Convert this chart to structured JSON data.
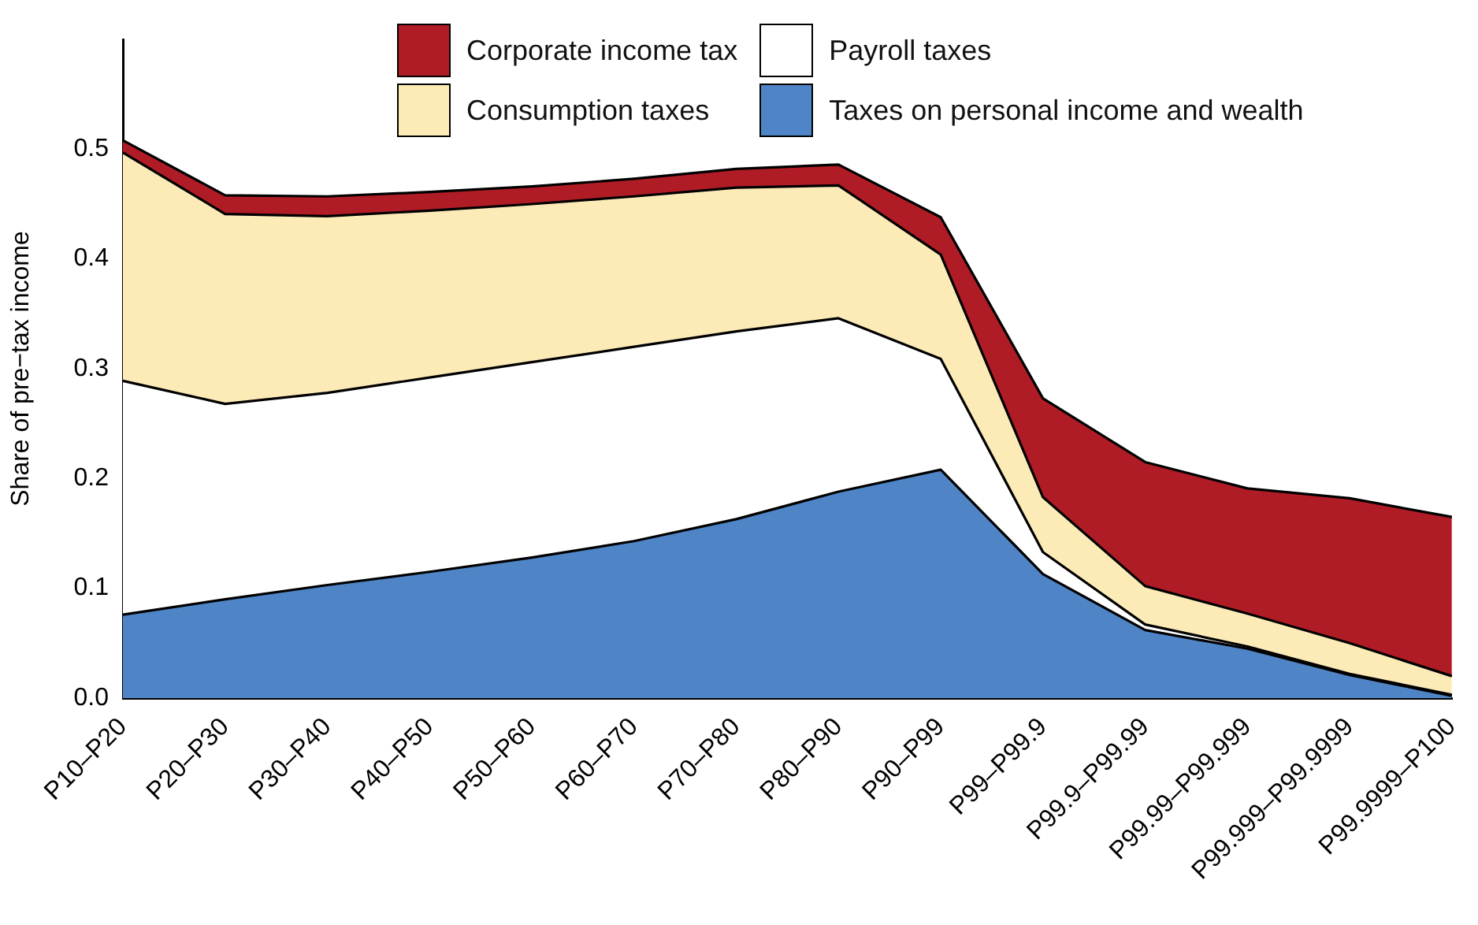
{
  "chart_data": {
    "type": "area",
    "stacked": true,
    "ylabel": "Share of pre−tax income",
    "categories": [
      "P10–P20",
      "P20–P30",
      "P30–P40",
      "P40–P50",
      "P50–P60",
      "P60–P70",
      "P70–P80",
      "P80–P90",
      "P90–P99",
      "P99–P99.9",
      "P99.9–P99.99",
      "P99.99–P99.999",
      "P99.999–P99.9999",
      "P99.9999–P100"
    ],
    "series": [
      {
        "name": "Taxes on personal income and wealth",
        "color": "#4f85c6",
        "values": [
          0.076,
          0.09,
          0.103,
          0.115,
          0.128,
          0.143,
          0.163,
          0.188,
          0.208,
          0.113,
          0.062,
          0.045,
          0.021,
          0.002
        ]
      },
      {
        "name": "Payroll taxes",
        "color": "#ffffff",
        "values": [
          0.213,
          0.178,
          0.175,
          0.177,
          0.178,
          0.177,
          0.171,
          0.158,
          0.101,
          0.02,
          0.005,
          0.002,
          0.001,
          0.001
        ]
      },
      {
        "name": "Consumption taxes",
        "color": "#fdebb7",
        "values": [
          0.208,
          0.173,
          0.161,
          0.152,
          0.144,
          0.137,
          0.131,
          0.121,
          0.095,
          0.05,
          0.035,
          0.03,
          0.028,
          0.017
        ]
      },
      {
        "name": "Corporate income tax",
        "color": "#b01c26",
        "values": [
          0.011,
          0.017,
          0.018,
          0.017,
          0.016,
          0.016,
          0.017,
          0.019,
          0.034,
          0.09,
          0.113,
          0.114,
          0.132,
          0.145
        ]
      }
    ],
    "ylim": [
      0,
      0.6
    ],
    "yticks": [
      {
        "value": 0,
        "label": "0.0"
      },
      {
        "value": 0.1,
        "label": "0.1"
      },
      {
        "value": 0.2,
        "label": "0.2"
      },
      {
        "value": 0.3,
        "label": "0.3"
      },
      {
        "value": 0.4,
        "label": "0.4"
      },
      {
        "value": 0.5,
        "label": "0.5"
      }
    ],
    "grid": false,
    "legend": "top right"
  }
}
